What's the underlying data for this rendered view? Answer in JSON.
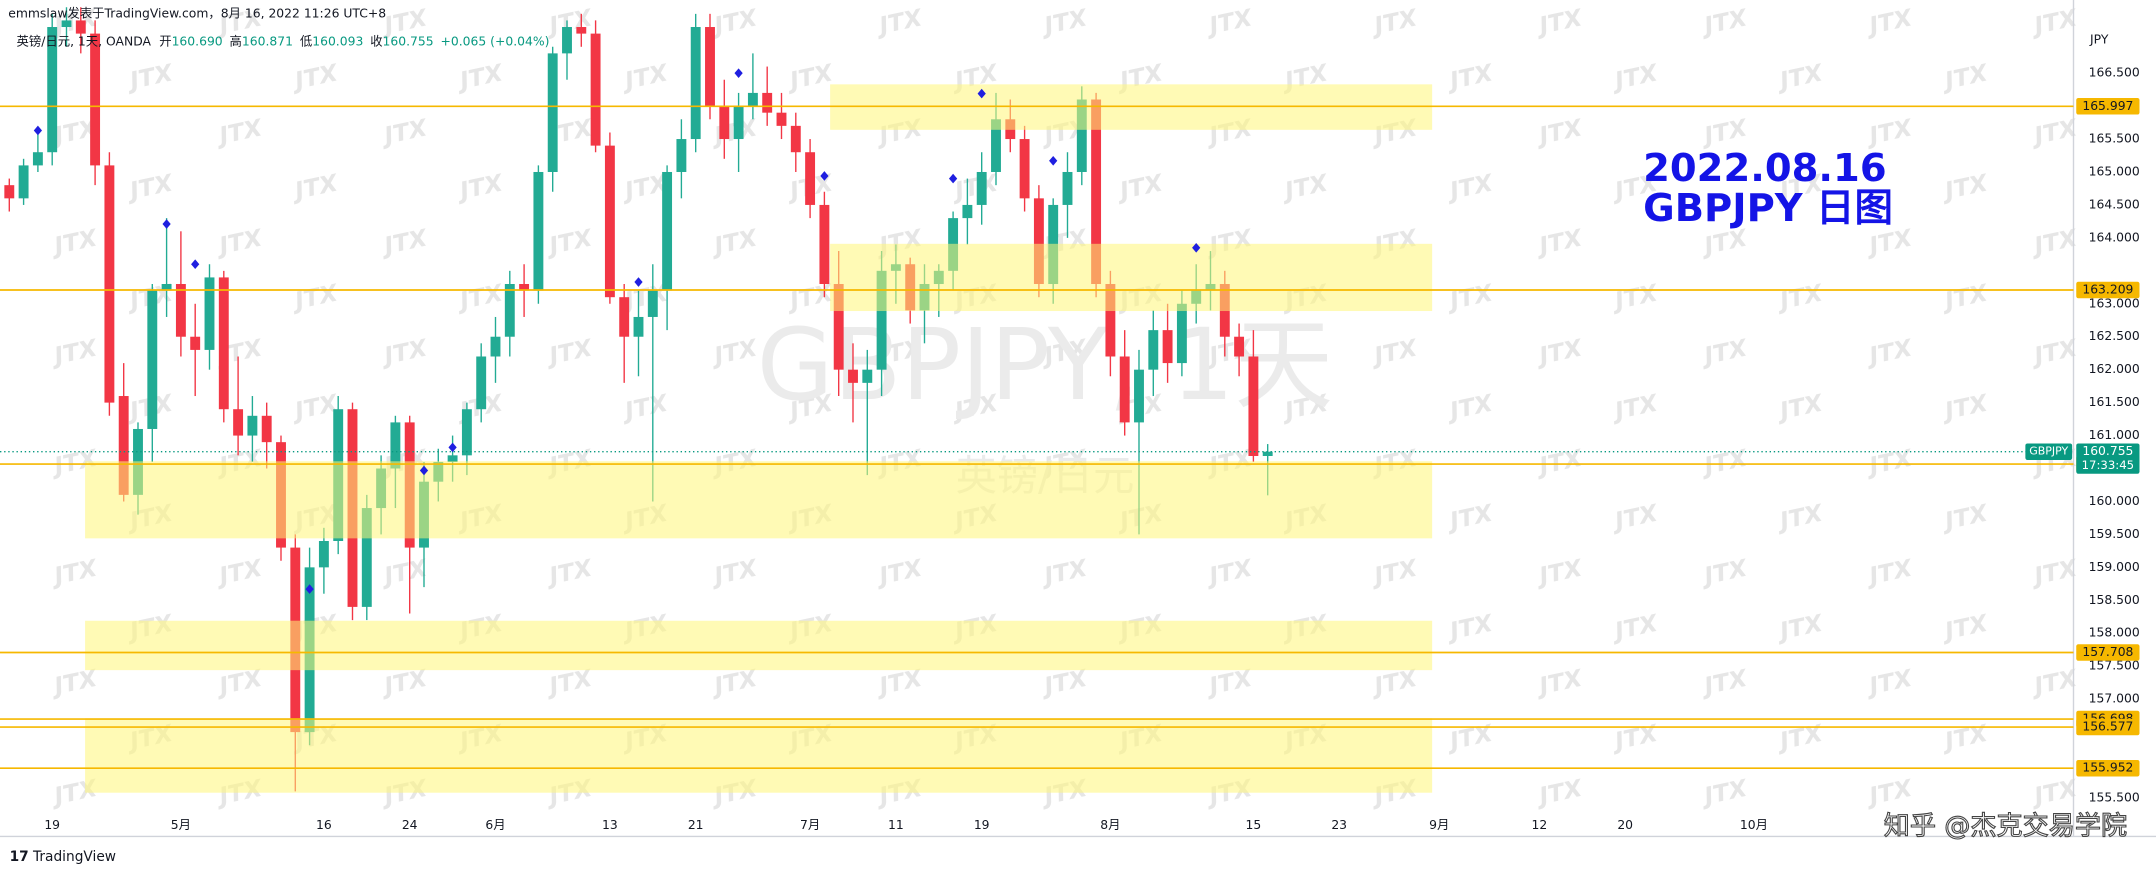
{
  "header": {
    "byline": "emmslaw发表于TradingView.com，8月 16, 2022 11:26 UTC+8",
    "symbol": "英镑/日元, 1天, OANDA",
    "ohlc_labels": [
      "开",
      "高",
      "低",
      "收"
    ],
    "ohlc_values": [
      "160.690",
      "160.871",
      "160.093",
      "160.755"
    ],
    "change": "+0.065 (+0.04%)"
  },
  "chart_data": {
    "type": "candlestick",
    "watermark": "GBPJPY, 1天",
    "watermark_sub": "英镑/日元",
    "annotation": [
      "2022.08.16",
      "GBPJPY 日图"
    ],
    "y_unit": "JPY",
    "x": [
      -3,
      -2,
      -1,
      0,
      1,
      2,
      3,
      4,
      5,
      6,
      7,
      8,
      9,
      10,
      11,
      12,
      13,
      14,
      15,
      16,
      17,
      18,
      19,
      20,
      21,
      22,
      23,
      24,
      25,
      26,
      27,
      28,
      29,
      30,
      31,
      32,
      33,
      34,
      35,
      36,
      37,
      38,
      39,
      40,
      41,
      42,
      43,
      44,
      45,
      46,
      47,
      48,
      49,
      50,
      51,
      52,
      53,
      54,
      55,
      56,
      57,
      58,
      59,
      60,
      61,
      62,
      63,
      64,
      65,
      66,
      67,
      68,
      69,
      70,
      71,
      72,
      73,
      74,
      75,
      76,
      77,
      78,
      79,
      80,
      81,
      82,
      83,
      84,
      85
    ],
    "ohlc": [
      [
        164.8,
        164.9,
        164.4,
        164.6
      ],
      [
        164.6,
        165.2,
        164.5,
        165.1
      ],
      [
        165.1,
        165.6,
        165.0,
        165.3
      ],
      [
        165.3,
        167.4,
        165.1,
        167.2
      ],
      [
        167.2,
        167.5,
        166.9,
        167.3
      ],
      [
        167.3,
        167.5,
        166.8,
        167.1
      ],
      [
        167.1,
        167.3,
        164.8,
        165.1
      ],
      [
        165.1,
        165.3,
        161.3,
        161.5
      ],
      [
        161.6,
        162.1,
        160.0,
        160.1
      ],
      [
        160.1,
        161.2,
        159.8,
        161.1
      ],
      [
        161.1,
        163.3,
        160.6,
        163.2
      ],
      [
        163.2,
        164.3,
        162.8,
        163.3
      ],
      [
        163.3,
        164.1,
        162.2,
        162.5
      ],
      [
        162.5,
        163.0,
        161.6,
        162.3
      ],
      [
        162.3,
        163.6,
        162.0,
        163.4
      ],
      [
        163.4,
        163.5,
        161.2,
        161.4
      ],
      [
        161.4,
        162.2,
        160.7,
        161.0
      ],
      [
        161.0,
        161.6,
        160.6,
        161.3
      ],
      [
        161.3,
        161.5,
        160.5,
        160.9
      ],
      [
        160.9,
        161.0,
        159.1,
        159.3
      ],
      [
        159.3,
        159.5,
        155.6,
        156.5
      ],
      [
        156.5,
        159.3,
        156.3,
        159.0
      ],
      [
        159.0,
        159.6,
        158.6,
        159.4
      ],
      [
        159.4,
        161.6,
        159.2,
        161.4
      ],
      [
        161.4,
        161.5,
        158.2,
        158.4
      ],
      [
        158.4,
        160.1,
        158.2,
        159.9
      ],
      [
        159.9,
        160.7,
        159.5,
        160.5
      ],
      [
        160.5,
        161.3,
        159.9,
        161.2
      ],
      [
        161.2,
        161.3,
        158.3,
        159.3
      ],
      [
        159.3,
        160.6,
        158.7,
        160.3
      ],
      [
        160.3,
        160.8,
        160.0,
        160.6
      ],
      [
        160.6,
        161.0,
        160.3,
        160.7
      ],
      [
        160.7,
        161.5,
        160.4,
        161.4
      ],
      [
        161.4,
        162.4,
        161.2,
        162.2
      ],
      [
        162.2,
        162.8,
        161.8,
        162.5
      ],
      [
        162.5,
        163.5,
        162.2,
        163.3
      ],
      [
        163.3,
        163.6,
        162.8,
        163.2
      ],
      [
        163.2,
        165.1,
        163.0,
        165.0
      ],
      [
        165.0,
        166.9,
        164.7,
        166.8
      ],
      [
        166.8,
        167.3,
        166.4,
        167.2
      ],
      [
        167.2,
        167.4,
        166.9,
        167.1
      ],
      [
        167.1,
        167.3,
        165.3,
        165.4
      ],
      [
        165.4,
        165.6,
        163.0,
        163.1
      ],
      [
        163.1,
        163.3,
        161.8,
        162.5
      ],
      [
        162.5,
        163.2,
        161.9,
        162.8
      ],
      [
        162.8,
        163.6,
        160.0,
        163.2
      ],
      [
        163.2,
        165.1,
        162.6,
        165.0
      ],
      [
        165.0,
        165.8,
        164.6,
        165.5
      ],
      [
        165.5,
        167.4,
        165.3,
        167.2
      ],
      [
        167.2,
        167.4,
        165.8,
        166.0
      ],
      [
        166.0,
        166.4,
        165.2,
        165.5
      ],
      [
        165.5,
        166.2,
        165.0,
        166.0
      ],
      [
        166.0,
        166.8,
        165.8,
        166.2
      ],
      [
        166.2,
        166.6,
        165.7,
        165.9
      ],
      [
        165.9,
        166.2,
        165.5,
        165.7
      ],
      [
        165.7,
        165.9,
        165.0,
        165.3
      ],
      [
        165.3,
        165.5,
        164.3,
        164.5
      ],
      [
        164.5,
        164.7,
        163.1,
        163.3
      ],
      [
        163.3,
        163.8,
        161.6,
        162.0
      ],
      [
        162.0,
        162.4,
        161.2,
        161.8
      ],
      [
        161.8,
        162.3,
        160.4,
        162.0
      ],
      [
        162.0,
        163.8,
        161.6,
        163.5
      ],
      [
        163.5,
        163.9,
        163.0,
        163.6
      ],
      [
        163.6,
        163.7,
        162.7,
        162.9
      ],
      [
        162.9,
        163.6,
        162.4,
        163.3
      ],
      [
        163.3,
        163.6,
        162.8,
        163.5
      ],
      [
        163.5,
        164.4,
        163.2,
        164.3
      ],
      [
        164.3,
        164.9,
        163.9,
        164.5
      ],
      [
        164.5,
        165.3,
        164.2,
        165.0
      ],
      [
        165.0,
        166.2,
        164.8,
        165.8
      ],
      [
        165.8,
        166.1,
        165.3,
        165.5
      ],
      [
        165.5,
        165.7,
        164.4,
        164.6
      ],
      [
        164.6,
        164.8,
        163.1,
        163.3
      ],
      [
        163.3,
        164.6,
        163.0,
        164.5
      ],
      [
        164.5,
        165.3,
        164.0,
        165.0
      ],
      [
        165.0,
        166.3,
        164.8,
        166.1
      ],
      [
        166.1,
        166.2,
        163.1,
        163.3
      ],
      [
        163.3,
        163.5,
        161.9,
        162.2
      ],
      [
        162.2,
        162.6,
        161.0,
        161.2
      ],
      [
        161.2,
        162.3,
        159.5,
        162.0
      ],
      [
        162.0,
        162.9,
        161.6,
        162.6
      ],
      [
        162.6,
        163.0,
        161.8,
        162.1
      ],
      [
        162.1,
        163.2,
        161.9,
        163.0
      ],
      [
        163.0,
        163.6,
        162.7,
        163.2
      ],
      [
        163.2,
        163.8,
        162.9,
        163.3
      ],
      [
        163.3,
        163.5,
        162.2,
        162.5
      ],
      [
        162.5,
        162.7,
        161.9,
        162.2
      ],
      [
        162.2,
        162.6,
        160.6,
        160.69
      ],
      [
        160.69,
        160.871,
        160.093,
        160.755
      ]
    ],
    "up_color": "#22ab94",
    "down_color": "#f23645",
    "xlim": [
      -3.65,
      141.35
    ],
    "xticks": [
      {
        "value": 0,
        "label": "19"
      },
      {
        "value": 9,
        "label": "5月"
      },
      {
        "value": 19,
        "label": "16"
      },
      {
        "value": 25,
        "label": "24"
      },
      {
        "value": 31,
        "label": "6月"
      },
      {
        "value": 39,
        "label": "13"
      },
      {
        "value": 45,
        "label": "21"
      },
      {
        "value": 53,
        "label": "7月"
      },
      {
        "value": 59,
        "label": "11"
      },
      {
        "value": 65,
        "label": "19"
      },
      {
        "value": 74,
        "label": "8月"
      },
      {
        "value": 84,
        "label": "15"
      },
      {
        "value": 90,
        "label": "23"
      },
      {
        "value": 97,
        "label": "9月"
      },
      {
        "value": 104,
        "label": "12"
      },
      {
        "value": 110,
        "label": "20"
      },
      {
        "value": 119,
        "label": "10月"
      }
    ],
    "ylim": [
      155.25,
      167.61
    ],
    "yticks": [
      {
        "value": 166.5,
        "label": "166.500"
      },
      {
        "value": 165.5,
        "label": "165.500"
      },
      {
        "value": 165,
        "label": "165.000"
      },
      {
        "value": 164.5,
        "label": "164.500"
      },
      {
        "value": 164,
        "label": "164.000"
      },
      {
        "value": 163,
        "label": "163.000"
      },
      {
        "value": 162.5,
        "label": "162.500"
      },
      {
        "value": 162,
        "label": "162.000"
      },
      {
        "value": 161.5,
        "label": "161.500"
      },
      {
        "value": 161,
        "label": "161.000"
      },
      {
        "value": 160,
        "label": "160.000"
      },
      {
        "value": 159.5,
        "label": "159.500"
      },
      {
        "value": 159,
        "label": "159.000"
      },
      {
        "value": 158.5,
        "label": "158.500"
      },
      {
        "value": 158,
        "label": "158.000"
      },
      {
        "value": 157.5,
        "label": "157.500"
      },
      {
        "value": 157,
        "label": "157.000"
      },
      {
        "value": 155.5,
        "label": "155.500"
      }
    ],
    "zones": [
      {
        "x": [
          54.4,
          96.5
        ],
        "y": [
          165.64,
          166.33
        ]
      },
      {
        "x": [
          54.4,
          96.5
        ],
        "y": [
          162.89,
          163.91
        ]
      },
      {
        "x": [
          2.3,
          96.5
        ],
        "y": [
          159.44,
          160.61
        ]
      },
      {
        "x": [
          2.3,
          96.5
        ],
        "y": [
          157.44,
          158.19
        ]
      },
      {
        "x": [
          2.3,
          96.5
        ],
        "y": [
          155.58,
          156.71
        ]
      }
    ],
    "zone_color": "rgba(255,246,120,0.55)",
    "levels": [
      165.997,
      163.209,
      160.568,
      157.708,
      156.698,
      156.577,
      155.952
    ],
    "level_color": "#f6b800",
    "last_price": {
      "symbol": "GBPJPY",
      "value": 160.755,
      "countdown": "17:33:45",
      "color": "#089981"
    },
    "signals": {
      "x": [
        -1,
        8,
        10,
        18,
        26,
        28,
        41,
        48,
        54,
        63,
        65,
        70,
        80
      ],
      "y": [
        165.63,
        164.21,
        163.6,
        158.67,
        160.47,
        160.82,
        163.33,
        166.5,
        164.94,
        164.9,
        166.19,
        165.17,
        163.85
      ],
      "color": "#1f1fe0"
    }
  },
  "footer": {
    "brand": "TradingView",
    "credit": "知乎 @杰克交易学院",
    "tile": "JTX"
  }
}
